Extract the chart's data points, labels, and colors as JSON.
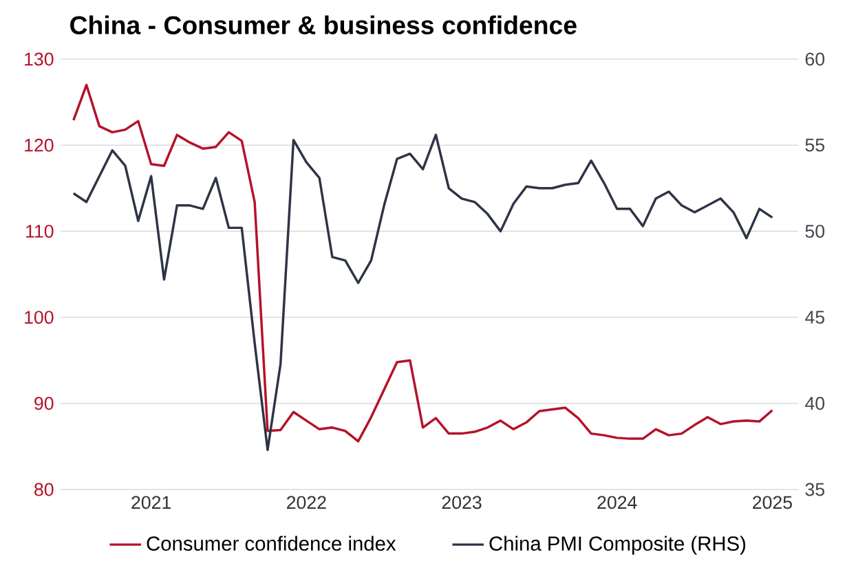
{
  "chart_data": {
    "type": "line",
    "title": "China - Consumer & business confidence",
    "x": [
      "2021-01",
      "2021-02",
      "2021-03",
      "2021-04",
      "2021-05",
      "2021-06",
      "2021-07",
      "2021-08",
      "2021-09",
      "2021-10",
      "2021-11",
      "2021-12",
      "2022-01",
      "2022-02",
      "2022-03",
      "2022-04",
      "2022-05",
      "2022-06",
      "2022-07",
      "2022-08",
      "2022-09",
      "2022-10",
      "2022-11",
      "2022-12",
      "2023-01",
      "2023-02",
      "2023-03",
      "2023-04",
      "2023-05",
      "2023-06",
      "2023-07",
      "2023-08",
      "2023-09",
      "2023-10",
      "2023-11",
      "2023-12",
      "2024-01",
      "2024-02",
      "2024-03",
      "2024-04",
      "2024-05",
      "2024-06",
      "2024-07",
      "2024-08",
      "2024-09",
      "2024-10",
      "2024-11",
      "2024-12",
      "2025-01",
      "2025-02",
      "2025-03",
      "2025-04",
      "2025-05",
      "2025-06",
      "2025-07"
    ],
    "series": [
      {
        "name": "Consumer confidence index",
        "color": "#b5122a",
        "values": [
          122.9,
          127.0,
          122.2,
          121.5,
          121.8,
          122.8,
          117.8,
          117.6,
          121.2,
          120.3,
          119.6,
          119.8,
          121.5,
          120.5,
          113.4,
          86.8,
          86.9,
          89.0,
          88.0,
          87.0,
          87.2,
          86.8,
          85.6,
          88.4,
          91.6,
          94.8,
          95.0,
          87.2,
          88.3,
          86.5,
          86.5,
          86.7,
          87.2,
          88.0,
          87.0,
          87.8,
          89.1,
          89.3,
          89.5,
          88.3,
          86.5,
          86.3,
          86.0,
          85.9,
          85.9,
          87.0,
          86.3,
          86.5,
          87.5,
          88.4,
          87.6,
          87.9,
          88.0,
          87.9,
          89.2
        ]
      },
      {
        "name": "China PMI Composite (RHS)",
        "color": "#2e3445",
        "axis": "y2",
        "values": [
          52.2,
          51.7,
          53.2,
          54.7,
          53.8,
          50.6,
          53.2,
          47.2,
          51.5,
          51.5,
          51.3,
          53.1,
          50.2,
          50.2,
          43.5,
          37.3,
          42.3,
          55.3,
          54.0,
          53.1,
          48.5,
          48.3,
          47.0,
          48.3,
          51.5,
          54.2,
          54.5,
          53.6,
          55.6,
          52.5,
          51.9,
          51.7,
          51.0,
          50.0,
          51.6,
          52.6,
          52.5,
          52.5,
          52.7,
          52.8,
          54.1,
          52.8,
          51.3,
          51.3,
          50.3,
          51.9,
          52.3,
          51.5,
          51.1,
          51.5,
          51.9,
          51.1,
          49.6,
          51.3,
          50.8
        ]
      }
    ],
    "xlim": [
      "2020-12",
      "2025-09"
    ],
    "xticks": [
      {
        "value": "2021-07",
        "label": "2021"
      },
      {
        "value": "2022-07",
        "label": "2022"
      },
      {
        "value": "2023-07",
        "label": "2023"
      },
      {
        "value": "2024-07",
        "label": "2024"
      },
      {
        "value": "2025-07",
        "label": "2025"
      }
    ],
    "ylim": [
      80,
      130
    ],
    "yticks": [
      80,
      90,
      100,
      110,
      120,
      130
    ],
    "y2lim": [
      35,
      60
    ],
    "y2ticks": [
      35,
      40,
      45,
      50,
      55,
      60
    ],
    "grid": "y",
    "legend": "bottom",
    "marker": "none",
    "line_style": "solid"
  }
}
